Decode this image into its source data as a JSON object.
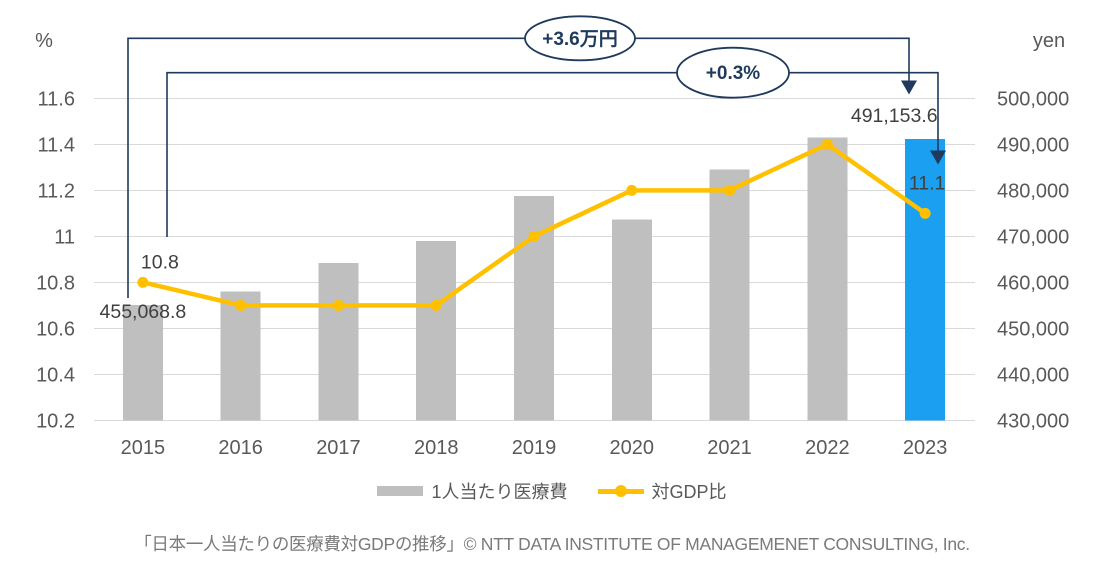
{
  "chart_data": {
    "type": "combo",
    "categories": [
      "2015",
      "2016",
      "2017",
      "2018",
      "2019",
      "2020",
      "2021",
      "2022",
      "2023"
    ],
    "series": [
      {
        "name": "1人当たり医療費",
        "type": "bar",
        "axis": "right",
        "unit": "yen",
        "color": "#BFBFBF",
        "highlight_index": 8,
        "highlight_color": "#1B9FF0",
        "values": [
          455068.8,
          458000,
          464200,
          469000,
          478800,
          473700,
          484500,
          491500,
          491153.6
        ]
      },
      {
        "name": "対GDP比",
        "type": "line",
        "axis": "left",
        "unit": "%",
        "color": "#FFC000",
        "values": [
          10.8,
          10.7,
          10.7,
          10.7,
          11.0,
          11.2,
          11.2,
          11.4,
          11.1
        ]
      }
    ],
    "axis_left": {
      "title": "%",
      "min": 10.2,
      "max": 11.6,
      "step": 0.2,
      "tick_labels": [
        "11.6",
        "11.4",
        "11.2",
        "11",
        "10.8",
        "10.6",
        "10.4",
        "10.2"
      ]
    },
    "axis_right": {
      "title": "yen",
      "min": 430000,
      "max": 500000,
      "step": 10000,
      "tick_labels": [
        "500,000",
        "490,000",
        "480,000",
        "470,000",
        "460,000",
        "450,000",
        "440,000",
        "430,000"
      ]
    },
    "data_labels": [
      {
        "series": 0,
        "index": 0,
        "text": "455,068.8"
      },
      {
        "series": 0,
        "index": 8,
        "text": "491,153.6"
      },
      {
        "series": 1,
        "index": 0,
        "text": "10.8"
      },
      {
        "series": 1,
        "index": 8,
        "text": "11.1"
      }
    ],
    "annotations": [
      {
        "label": "+3.6万円",
        "applies_to": "1人当たり医療費 2015→2023"
      },
      {
        "label": "+0.3%",
        "applies_to": "対GDP比 2015→2023"
      }
    ],
    "grid": true,
    "legend_position": "bottom",
    "colors": {
      "grid": "#D9D9D9",
      "axis_text": "#595959",
      "data_label_text": "#404040",
      "annotation": "#1F3A5C",
      "background": "#FFFFFF"
    }
  },
  "caption": {
    "text": "「日本一人当たりの医療費対GDPの推移」© NTT DATA INSTITUTE OF MANAGEMENET CONSULTING, Inc."
  }
}
